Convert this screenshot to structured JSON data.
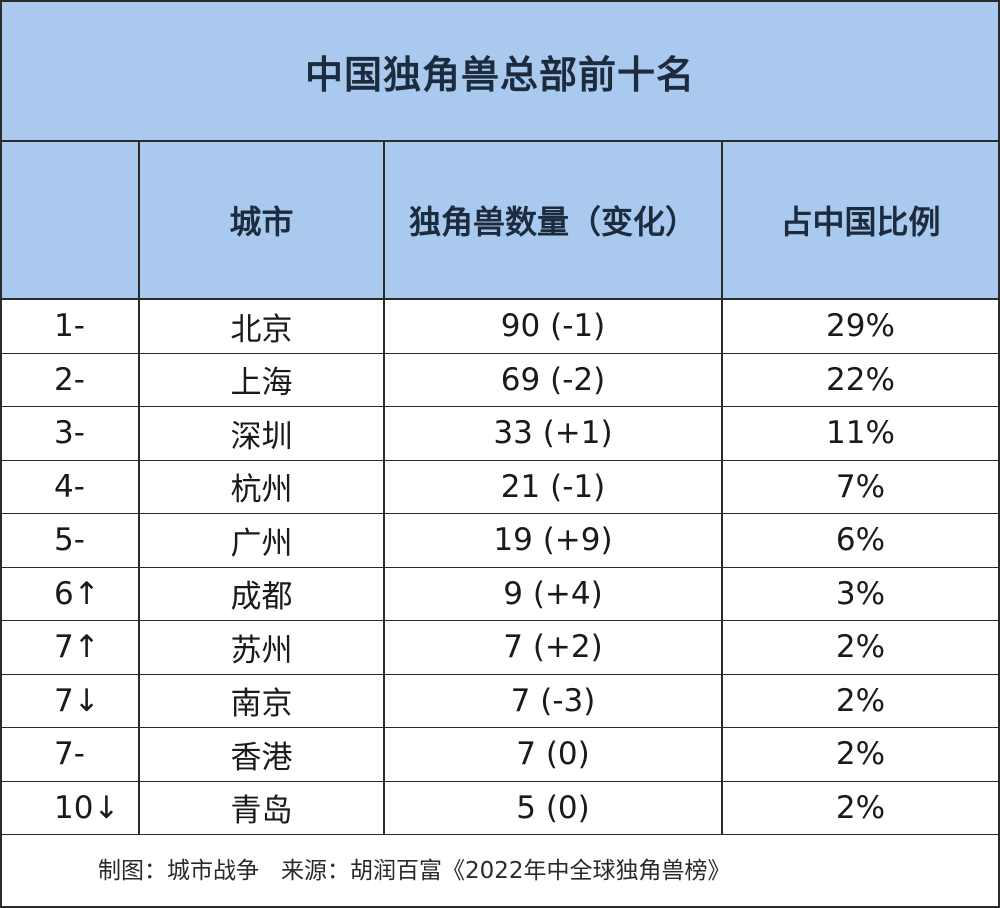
{
  "title": "中国独角兽总部前十名",
  "table": {
    "headers": [
      "",
      "城市",
      "独角兽数量（变化）",
      "占中国比例"
    ],
    "rows": [
      {
        "rank": "1-",
        "city": "北京",
        "count": "90 (-1)",
        "share": "29%"
      },
      {
        "rank": "2-",
        "city": "上海",
        "count": "69 (-2)",
        "share": "22%"
      },
      {
        "rank": "3-",
        "city": "深圳",
        "count": "33 (+1)",
        "share": "11%"
      },
      {
        "rank": "4-",
        "city": "杭州",
        "count": "21 (-1)",
        "share": "7%"
      },
      {
        "rank": "5-",
        "city": "广州",
        "count": "19 (+9)",
        "share": "6%"
      },
      {
        "rank": "6↑",
        "city": "成都",
        "count": "9 (+4)",
        "share": "3%"
      },
      {
        "rank": "7↑",
        "city": "苏州",
        "count": "7 (+2)",
        "share": "2%"
      },
      {
        "rank": "7↓",
        "city": "南京",
        "count": "7 (-3)",
        "share": "2%"
      },
      {
        "rank": "7-",
        "city": "香港",
        "count": "7 (0)",
        "share": "2%"
      },
      {
        "rank": "10↓",
        "city": "青岛",
        "count": "5 (0)",
        "share": "2%"
      }
    ]
  },
  "footer": {
    "credit": "制图：城市战争",
    "source": "来源：胡润百富《2022年中全球独角兽榜》"
  },
  "colors": {
    "header_background": "#a9c9ee",
    "border": "#2b2b2b"
  }
}
